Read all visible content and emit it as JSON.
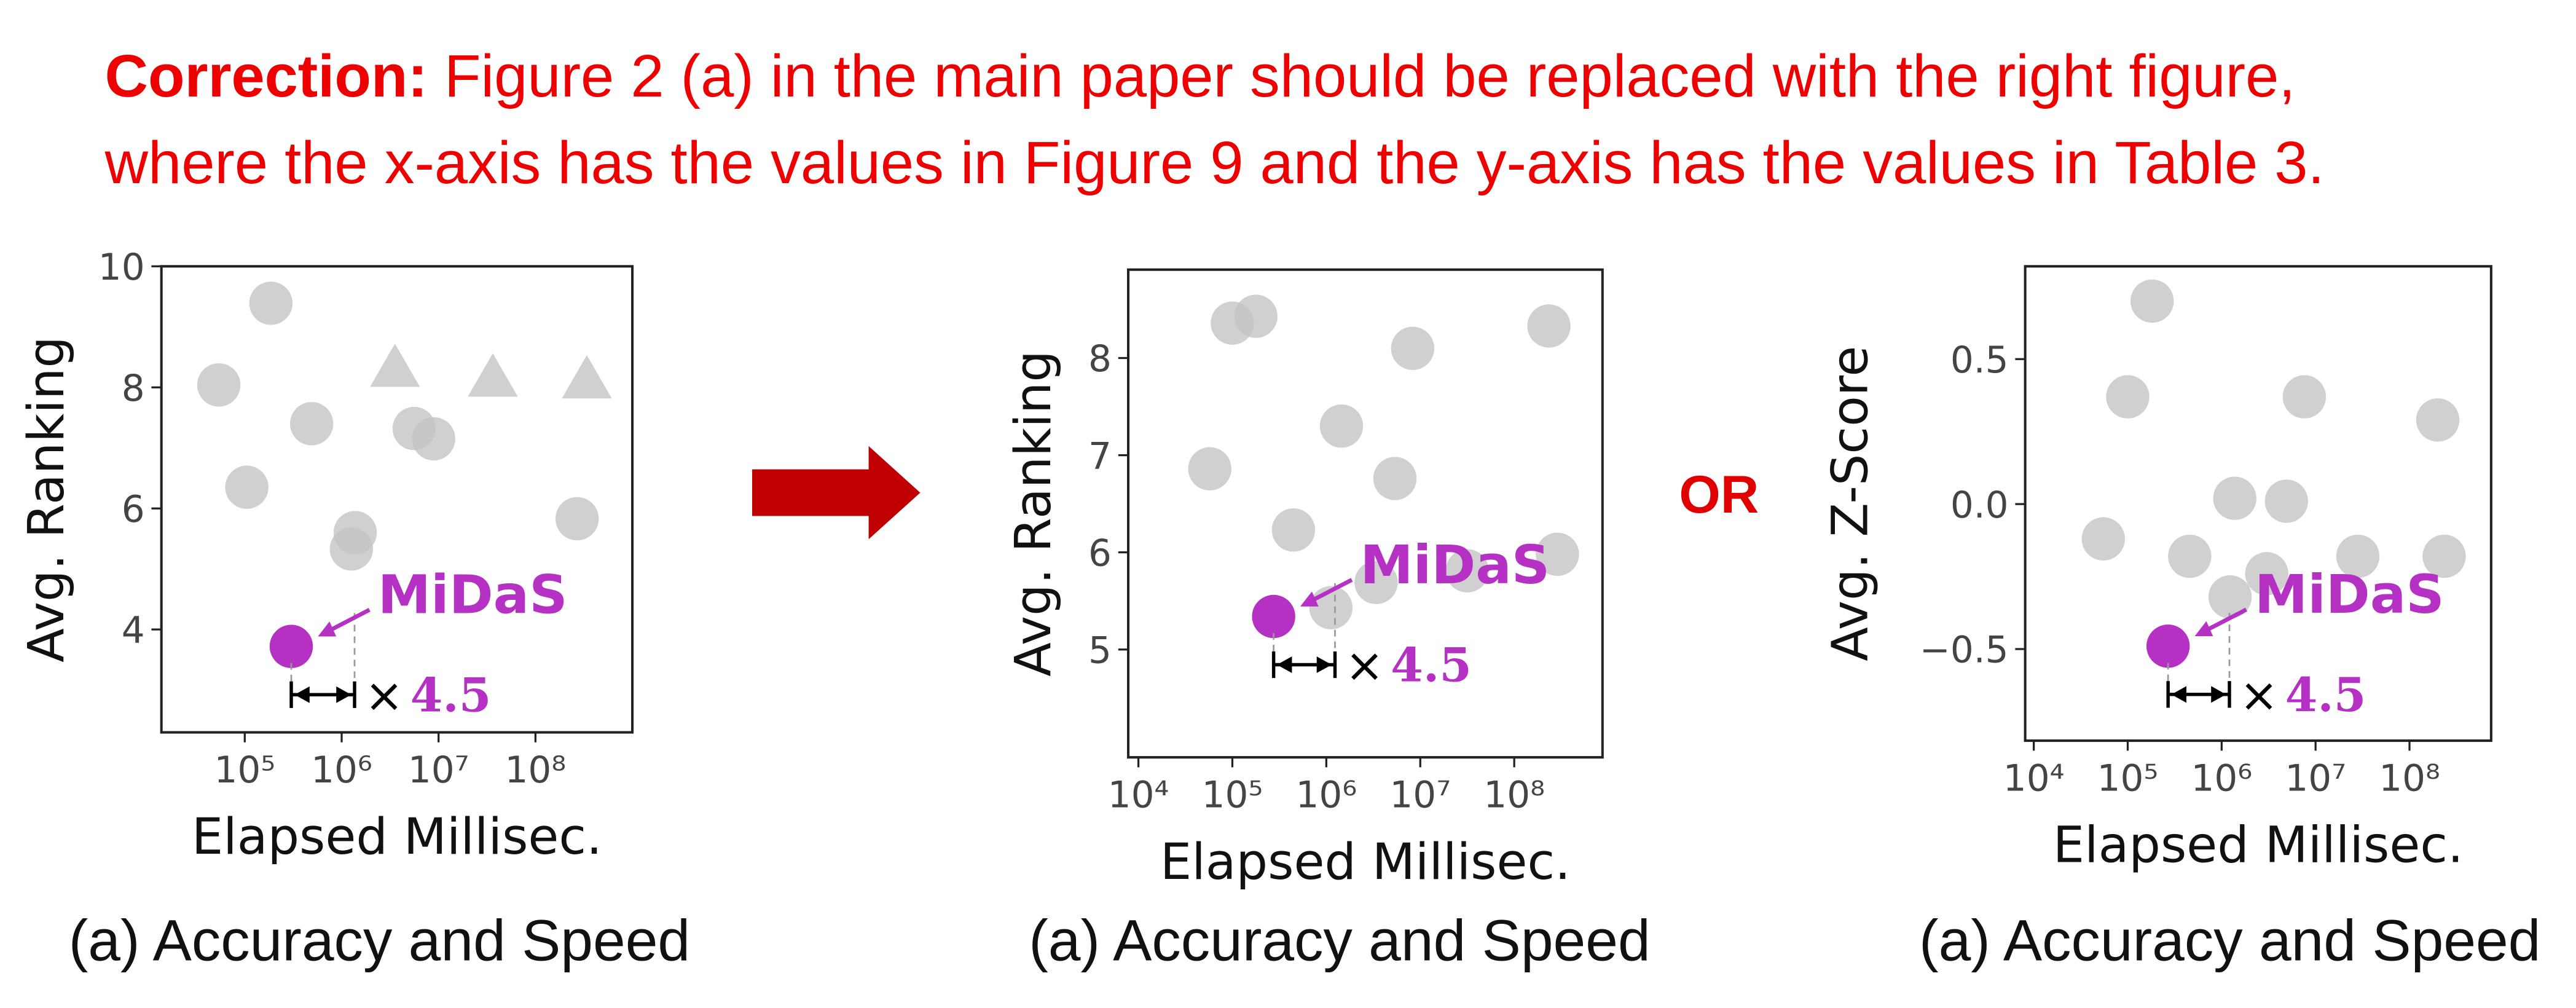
{
  "header": {
    "label": "Correction:",
    "lines": [
      "Figure 2 (a) in the main paper should be replaced with the right figure,",
      "where the x-axis has the values in Figure 9 and the y-axis has the values in Table 3."
    ]
  },
  "or_label": "OR",
  "chart_data": [
    {
      "type": "scatter",
      "caption": "(a) Accuracy and Speed",
      "x_label": "Elapsed Millisec.",
      "y_label": "Avg. Ranking",
      "xscale": "log",
      "xlim": [
        13800,
        1000000000
      ],
      "ylim": [
        2.3,
        10
      ],
      "xticks": [
        {
          "value": 100000,
          "label": "10⁵"
        },
        {
          "value": 1000000,
          "label": "10⁶"
        },
        {
          "value": 10000000,
          "label": "10⁷"
        },
        {
          "value": 100000000,
          "label": "10⁸"
        }
      ],
      "yticks": [
        4,
        6,
        8,
        10
      ],
      "series": [
        {
          "marker": "circle",
          "color": "#c4c4c4",
          "x": [
            54000,
            186000,
            105000,
            490000,
            1380000,
            1260000,
            5600000,
            8900000,
            269000000
          ],
          "y": [
            8.04,
            9.39,
            6.35,
            7.4,
            5.6,
            5.33,
            7.32,
            7.15,
            5.83
          ]
        },
        {
          "marker": "triangle",
          "color": "#c4c4c4",
          "x": [
            3550000,
            36300000,
            339000000
          ],
          "y": [
            8.31,
            8.15,
            8.12
          ]
        },
        {
          "marker": "circle",
          "color": "#b531c4",
          "x": [
            302000
          ],
          "y": [
            3.72
          ]
        }
      ],
      "highlight": "MiDaS",
      "speedup_sign": "×",
      "speedup": 4.5
    },
    {
      "type": "scatter",
      "caption": "(a) Accuracy and Speed",
      "x_label": "Elapsed Millisec.",
      "y_label": "Avg. Ranking",
      "xscale": "log",
      "xlim": [
        7800,
        870000000
      ],
      "ylim": [
        3.89,
        8.91
      ],
      "xticks": [
        {
          "value": 10000,
          "label": "10⁴"
        },
        {
          "value": 100000,
          "label": "10⁵"
        },
        {
          "value": 1000000,
          "label": "10⁶"
        },
        {
          "value": 10000000,
          "label": "10⁷"
        },
        {
          "value": 100000000,
          "label": "10⁸"
        }
      ],
      "yticks": [
        5,
        6,
        7,
        8
      ],
      "series": [
        {
          "marker": "circle",
          "color": "#c4c4c4",
          "x": [
            57500,
            100000,
            178000,
            447000,
            1450000,
            8300000,
            5370000,
            3390000,
            1120000,
            31600000,
            234000000,
            288000000
          ],
          "y": [
            6.86,
            8.36,
            8.43,
            6.23,
            7.3,
            8.1,
            6.76,
            5.69,
            5.43,
            5.81,
            8.33,
            5.98
          ]
        },
        {
          "marker": "circle",
          "color": "#b531c4",
          "x": [
            275000
          ],
          "y": [
            5.34
          ]
        }
      ],
      "highlight": "MiDaS",
      "speedup_sign": "×",
      "speedup": 4.5
    },
    {
      "type": "scatter",
      "caption": "(a) Accuracy and Speed",
      "x_label": "Elapsed Millisec.",
      "y_label": "Avg. Z-Score",
      "xscale": "log",
      "xlim": [
        8100,
        740000000
      ],
      "ylim": [
        -0.816,
        0.82
      ],
      "xticks": [
        {
          "value": 10000,
          "label": "10⁴"
        },
        {
          "value": 100000,
          "label": "10⁵"
        },
        {
          "value": 1000000,
          "label": "10⁶"
        },
        {
          "value": 10000000,
          "label": "10⁷"
        },
        {
          "value": 100000000,
          "label": "10⁸"
        }
      ],
      "yticks": [
        {
          "value": -0.5,
          "label": "−0.5"
        },
        {
          "value": 0,
          "label": "0.0"
        },
        {
          "value": 0.5,
          "label": "0.5"
        }
      ],
      "series": [
        {
          "marker": "circle",
          "color": "#c4c4c4",
          "x": [
            55000,
            100000,
            182000,
            457000,
            1380000,
            1230000,
            3020000,
            4900000,
            7590000,
            28200000,
            200000000,
            234000000
          ],
          "y": [
            -0.12,
            0.37,
            0.7,
            -0.18,
            0.02,
            -0.32,
            -0.24,
            0.01,
            0.37,
            -0.18,
            0.29,
            -0.18
          ]
        },
        {
          "marker": "circle",
          "color": "#b531c4",
          "x": [
            269000
          ],
          "y": [
            -0.49
          ]
        }
      ],
      "highlight": "MiDaS",
      "speedup_sign": "×",
      "speedup": 4.5
    }
  ]
}
